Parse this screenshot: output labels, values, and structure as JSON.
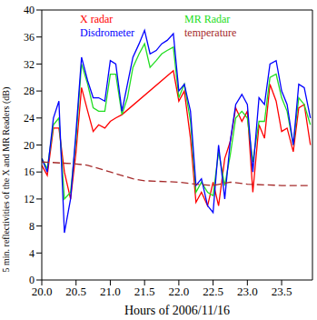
{
  "chart_data": {
    "type": "line",
    "x_label": "Hours of 2006/11/16",
    "y_label": "5 min. reflectivities of the X and MR Readers (dB)",
    "xlim": [
      20,
      23.95
    ],
    "xticks": [
      {
        "value": 20,
        "label": "20.0"
      },
      20.5,
      {
        "value": 21,
        "label": "21.0"
      },
      21.5,
      {
        "value": 22,
        "label": "22.0"
      },
      22.5,
      {
        "value": 23,
        "label": "23.0"
      },
      23.5
    ],
    "ylim": [
      0,
      40
    ],
    "yticks": [
      0,
      4,
      8,
      12,
      16,
      20,
      24,
      28,
      32,
      36,
      40
    ],
    "grid": false,
    "legend": "top",
    "series": [
      {
        "name": "X radar",
        "color": "#ff0000",
        "line_style": "solid",
        "x": [
          20,
          20.08,
          20.17,
          20.25,
          20.33,
          20.42,
          20.5,
          20.58,
          20.67,
          20.75,
          20.83,
          20.92,
          21,
          21.08,
          21.17,
          21.92,
          22,
          22.08,
          22.17,
          22.25,
          22.33,
          22.42,
          22.5,
          22.58,
          22.67,
          22.75,
          22.83,
          22.92,
          23,
          23.08,
          23.17,
          23.25,
          23.33,
          23.42,
          23.5,
          23.58,
          23.67,
          23.75,
          23.83,
          23.92
        ],
        "values": [
          17,
          15.5,
          22.5,
          22.5,
          16,
          12,
          19,
          28.5,
          25,
          22,
          23,
          22.5,
          23.5,
          24,
          24.5,
          31,
          26.5,
          28,
          21,
          11.5,
          13,
          11,
          14.5,
          11,
          18,
          20.5,
          25.5,
          23.5,
          25,
          13,
          23,
          21,
          29,
          26.5,
          22,
          22.5,
          19,
          25.5,
          26,
          20
        ]
      },
      {
        "name": "MR Radar",
        "color": "#22dd22",
        "line_style": "solid",
        "x": [
          20,
          20.08,
          20.17,
          20.25,
          20.33,
          20.42,
          20.5,
          20.58,
          20.67,
          20.75,
          20.83,
          20.92,
          21,
          21.08,
          21.17,
          21.25,
          21.33,
          21.42,
          21.5,
          21.58,
          21.67,
          21.75,
          21.83,
          21.92,
          22,
          22.08,
          22.17,
          22.25,
          22.33,
          22.42,
          22.5,
          22.58,
          22.67,
          22.75,
          22.83,
          22.92,
          23,
          23.08,
          23.17,
          23.25,
          23.33,
          23.42,
          23.5,
          23.58,
          23.67,
          23.75,
          23.83,
          23.92
        ],
        "values": [
          18,
          16.5,
          23,
          24,
          12,
          13,
          21,
          32,
          29,
          25.5,
          25,
          25,
          30.5,
          30.5,
          24.5,
          27,
          31.5,
          33.5,
          35,
          31.5,
          32.5,
          33.5,
          34,
          34.5,
          27,
          29,
          23.5,
          13,
          14.5,
          13,
          12.5,
          19,
          14,
          18.5,
          24,
          25,
          24,
          17.5,
          23.5,
          23.5,
          30,
          30.5,
          27,
          25,
          20,
          27,
          26,
          23
        ]
      },
      {
        "name": "Disdrometer",
        "color": "#0000ff",
        "line_style": "solid",
        "x": [
          20,
          20.08,
          20.17,
          20.25,
          20.33,
          20.42,
          20.5,
          20.58,
          20.67,
          20.75,
          20.83,
          20.92,
          21,
          21.08,
          21.17,
          21.25,
          21.33,
          21.42,
          21.5,
          21.58,
          21.67,
          21.75,
          21.83,
          21.92,
          22,
          22.08,
          22.17,
          22.25,
          22.33,
          22.42,
          22.5,
          22.58,
          22.67,
          22.75,
          22.83,
          22.92,
          23,
          23.08,
          23.17,
          23.25,
          23.33,
          23.42,
          23.5,
          23.58,
          23.67,
          23.75,
          23.83,
          23.92
        ],
        "values": [
          18,
          16,
          24,
          26.5,
          7,
          12,
          22,
          33,
          29.5,
          27,
          27,
          26.5,
          32.5,
          32,
          25,
          29,
          33,
          35,
          37,
          33.5,
          34,
          35,
          35.5,
          36.5,
          28,
          29,
          25,
          14,
          15,
          11,
          10,
          20,
          12,
          20.5,
          26,
          27.5,
          26,
          16,
          27,
          26,
          32,
          32.5,
          28,
          26,
          20,
          29,
          28.5,
          24
        ]
      },
      {
        "name": "temperature",
        "color": "#a52a2a",
        "line_style": "dashed",
        "x": [
          20,
          20.5,
          20.67,
          21,
          21.33,
          21.5,
          22,
          22.25,
          22.5,
          22.75,
          23,
          23.5,
          23.92
        ],
        "values": [
          17.5,
          17.2,
          17,
          16,
          15,
          14.7,
          14.5,
          14.2,
          14,
          14.5,
          14.2,
          14,
          14
        ]
      }
    ]
  }
}
